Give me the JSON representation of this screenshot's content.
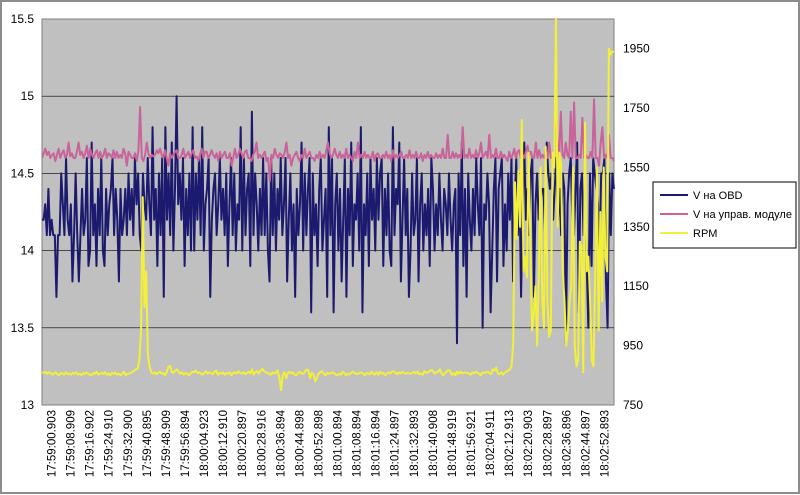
{
  "chart_data": {
    "type": "line",
    "x_tick_labels": [
      "17:59:00.903",
      "17:59:08.909",
      "17:59:16.902",
      "17:59:24.910",
      "17:59:32.900",
      "17:59:40.895",
      "17:59:48.909",
      "17:59:56.894",
      "18:00:04.923",
      "18:00:12.910",
      "18:00:20.897",
      "18:00:28.916",
      "18:00:36.894",
      "18:00:44.898",
      "18:00:52.898",
      "18:01:00.894",
      "18:01:08.894",
      "18:01:16.894",
      "18:01:24.897",
      "18:01:32.893",
      "18:01:40.908",
      "18:01:48.919",
      "18:01:56.921",
      "18:02:04.911",
      "18:02:12.913",
      "18:02:20.903",
      "18:02:28.897",
      "18:02:36.896",
      "18:02:44.897",
      "18:02:52.893"
    ],
    "y_left": {
      "ticks": [
        "13",
        "13.5",
        "14",
        "14.5",
        "15",
        "15.5"
      ],
      "range": [
        13,
        15.5
      ]
    },
    "y_right": {
      "ticks": [
        "750",
        "950",
        "1150",
        "1350",
        "1550",
        "1750",
        "1950"
      ],
      "range": [
        750,
        2050
      ]
    },
    "grid": true,
    "legend_position": "right",
    "series": [
      {
        "name": "V на OBD",
        "axis": "left",
        "color": "#1c1a6e",
        "values": [
          14.2,
          14.2,
          14.3,
          14.1,
          14.4,
          14.1,
          14.2,
          14.1,
          14.1,
          13.7,
          14.1,
          14.1,
          14.5,
          14.3,
          14.1,
          14.6,
          14.2,
          14.1,
          14.3,
          13.8,
          14.1,
          14.5,
          14.1,
          13.8,
          14.1,
          14.4,
          14.1,
          14.2,
          14.6,
          13.9,
          14.0,
          14.7,
          14.1,
          14.3,
          13.9,
          14.4,
          14.1,
          14.6,
          14.0,
          13.9,
          14.4,
          14.1,
          14.3,
          14.4,
          14.6,
          14.1,
          14.4,
          14.2,
          13.8,
          14.4,
          14.1,
          14.2,
          14.4,
          14.1,
          14.5,
          14.2,
          14.4,
          14.1,
          14.6,
          14.3,
          14.5,
          14.1,
          14.0,
          14.5,
          14.3,
          14.2,
          14.6,
          14.3,
          14.1,
          14.8,
          14.2,
          14.4,
          13.9,
          14.5,
          14.1,
          14.6,
          13.7,
          14.8,
          14.2,
          14.5,
          14.1,
          14.7,
          14.0,
          14.4,
          15.0,
          14.3,
          14.5,
          14.2,
          14.6,
          13.9,
          14.4,
          14.1,
          14.5,
          14.0,
          14.8,
          14.0,
          14.5,
          14.2,
          14.6,
          14.1,
          14.8,
          14.0,
          14.3,
          14.4,
          14.6,
          13.7,
          14.2,
          14.4,
          14.5,
          14.1,
          14.3,
          14.6,
          14.2,
          14.4,
          14.1,
          14.5,
          13.9,
          14.3,
          14.6,
          14.1,
          14.5,
          14.0,
          14.3,
          14.2,
          14.8,
          14.0,
          14.6,
          14.1,
          14.4,
          14.5,
          13.9,
          14.9,
          14.1,
          14.5,
          14.3,
          14.0,
          14.4,
          14.1,
          14.6,
          14.1,
          14.5,
          14.0,
          13.8,
          14.6,
          14.1,
          14.5,
          14.0,
          14.4,
          14.2,
          14.6,
          14.1,
          14.3,
          14.6,
          13.8,
          14.2,
          14.5,
          14.0,
          14.3,
          13.7,
          14.4,
          14.1,
          14.3,
          14.7,
          14.0,
          14.5,
          14.1,
          14.4,
          14.6,
          13.6,
          14.5,
          14.1,
          14.3,
          13.9,
          14.4,
          14.6,
          14.0,
          14.2,
          14.4,
          13.7,
          14.8,
          14.1,
          14.6,
          13.6,
          14.3,
          14.5,
          14.0,
          14.4,
          13.8,
          14.2,
          14.6,
          13.7,
          14.4,
          14.1,
          14.7,
          13.9,
          14.3,
          14.2,
          14.5,
          14.0,
          14.8,
          13.6,
          14.3,
          14.1,
          14.5,
          13.9,
          14.6,
          14.2,
          14.4,
          14.0,
          14.6,
          14.2,
          14.5,
          14.6,
          13.9,
          14.4,
          14.1,
          14.5,
          14.0,
          13.9,
          14.8,
          14.1,
          14.4,
          14.3,
          14.7,
          13.8,
          14.2,
          14.6,
          14.1,
          14.4,
          13.7,
          14.0,
          14.5,
          14.1,
          14.2,
          14.6,
          13.8,
          14.3,
          14.5,
          14.0,
          14.3,
          14.1,
          14.4,
          13.9,
          14.6,
          14.4,
          14.0,
          14.3,
          14.1,
          14.5,
          14.2,
          14.0,
          14.4,
          14.3,
          14.1,
          14.5,
          14.2,
          14.0,
          14.3,
          14.4,
          13.4,
          14.5,
          14.1,
          14.7,
          13.9,
          14.4,
          13.7,
          14.5,
          14.2,
          14.0,
          14.4,
          14.1,
          14.6,
          14.3,
          14.1,
          14.6,
          13.5,
          14.3,
          14.2,
          14.5,
          14.3,
          13.6,
          14.0,
          14.4,
          14.6,
          13.8,
          14.4,
          14.5,
          14.6,
          13.9,
          14.3,
          14.0,
          14.5,
          14.2,
          14.6,
          13.8,
          14.3,
          14.6,
          14.1,
          14.4,
          13.7,
          14.3,
          14.7,
          14.2,
          14.4,
          14.1,
          14.5,
          14.6,
          13.7,
          14.3,
          14.5,
          14.2,
          14.3,
          14.4,
          14.4,
          14.1,
          14.7,
          14.5,
          14.4,
          14.5,
          14.2,
          14.4,
          14.6,
          14.2,
          14.4,
          14.1,
          14.5,
          14.4,
          13.4,
          14.3,
          14.5,
          14.6,
          14.2,
          14.1,
          14.4,
          14.7,
          13.6,
          14.4,
          14.5,
          14.1,
          14.3,
          13.9,
          13.5,
          14.5,
          13.9,
          14.6,
          14.5,
          14.4,
          14.3,
          14.0,
          14.5,
          14.5,
          14.6,
          13.8,
          13.5,
          14.5,
          14.1,
          14.5,
          14.4
        ]
      },
      {
        "name": "V на управ. модуле",
        "axis": "left",
        "color": "#c8649a",
        "values": [
          14.6,
          14.63,
          14.66,
          14.62,
          14.64,
          14.6,
          14.62,
          14.63,
          14.58,
          14.62,
          14.66,
          14.6,
          14.63,
          14.65,
          14.6,
          14.62,
          14.7,
          14.61,
          14.63,
          14.6,
          14.6,
          14.64,
          14.7,
          14.62,
          14.64,
          14.6,
          14.63,
          14.68,
          14.6,
          14.66,
          14.62,
          14.6,
          14.63,
          14.65,
          14.6,
          14.64,
          14.6,
          14.62,
          14.66,
          14.6,
          14.63,
          14.62,
          14.6,
          14.65,
          14.6,
          14.64,
          14.6,
          14.62,
          14.6,
          14.66,
          14.63,
          14.55,
          14.64,
          14.62,
          14.6,
          14.6,
          14.63,
          14.58,
          14.65,
          14.93,
          14.6,
          14.58,
          14.62,
          14.7,
          14.63,
          14.6,
          14.62,
          14.61,
          14.62,
          14.65,
          14.63,
          14.66,
          14.62,
          14.6,
          14.65,
          14.6,
          14.55,
          14.63,
          14.6,
          14.62,
          14.64,
          14.65,
          14.6,
          14.6,
          14.62,
          14.66,
          14.6,
          14.62,
          14.64,
          14.6,
          14.63,
          14.65,
          14.6,
          14.61,
          14.58,
          14.62,
          14.66,
          14.6,
          14.64,
          14.64,
          14.6,
          14.62,
          14.65,
          14.62,
          14.6,
          14.63,
          14.58,
          14.64,
          14.6,
          14.62,
          14.64,
          14.6,
          14.6,
          14.63,
          14.55,
          14.6,
          14.66,
          14.6,
          14.62,
          14.66,
          14.63,
          14.6,
          14.64,
          14.65,
          14.6,
          14.6,
          14.58,
          14.62,
          14.64,
          14.7,
          14.6,
          14.62,
          14.6,
          14.62,
          14.64,
          14.58,
          14.6,
          14.45,
          14.62,
          14.6,
          14.66,
          14.62,
          14.6,
          14.63,
          14.62,
          14.6,
          14.64,
          14.7,
          14.6,
          14.62,
          14.55,
          14.6,
          14.62,
          14.64,
          14.6,
          14.58,
          14.62,
          14.6,
          14.66,
          14.6,
          14.62,
          14.64,
          14.6,
          14.6,
          14.58,
          14.62,
          14.6,
          14.64,
          14.6,
          14.62,
          14.6,
          14.65,
          14.7,
          14.63,
          14.6,
          14.62,
          14.66,
          14.62,
          14.6,
          14.64,
          14.6,
          14.62,
          14.6,
          14.66,
          14.6,
          14.62,
          14.6,
          14.58,
          14.64,
          14.6,
          14.7,
          14.6,
          14.62,
          14.6,
          14.64,
          14.6,
          14.62,
          14.6,
          14.6,
          14.64,
          14.58,
          14.62,
          14.63,
          14.6,
          14.6,
          14.62,
          14.6,
          14.64,
          14.6,
          14.62,
          14.58,
          14.65,
          14.6,
          14.62,
          14.6,
          14.62,
          14.64,
          14.6,
          14.6,
          14.62,
          14.6,
          14.65,
          14.6,
          14.62,
          14.6,
          14.64,
          14.6,
          14.6,
          14.63,
          14.58,
          14.62,
          14.6,
          14.64,
          14.6,
          14.62,
          14.6,
          14.6,
          14.63,
          14.6,
          14.62,
          14.6,
          14.66,
          14.6,
          14.6,
          14.75,
          14.6,
          14.6,
          14.64,
          14.6,
          14.63,
          14.6,
          14.62,
          14.6,
          14.8,
          14.6,
          14.62,
          14.6,
          14.66,
          14.6,
          14.62,
          14.6,
          14.65,
          14.6,
          14.63,
          14.7,
          14.6,
          14.62,
          14.64,
          14.6,
          14.75,
          14.6,
          14.62,
          14.6,
          14.66,
          14.6,
          14.6,
          14.64,
          14.6,
          14.62,
          14.6,
          14.58,
          14.64,
          14.6,
          14.62,
          14.66,
          14.6,
          14.64,
          14.65,
          14.6,
          14.62,
          14.6,
          14.64,
          14.68,
          14.62,
          14.64,
          14.6,
          14.6,
          14.7,
          14.6,
          14.65,
          14.6,
          14.62,
          14.6,
          14.64,
          14.6,
          14.7,
          14.6,
          14.62,
          14.6,
          14.99,
          14.7,
          14.6,
          14.9,
          14.62,
          14.6,
          14.7,
          14.62,
          14.6,
          14.9,
          14.6,
          14.96,
          14.6,
          14.6,
          14.62,
          14.6,
          14.86,
          14.6,
          14.62,
          14.6,
          14.6,
          14.64,
          14.6,
          14.98,
          14.6,
          14.6,
          14.55,
          14.7,
          14.8,
          14.6,
          14.62,
          14.6,
          14.75,
          14.6,
          14.6,
          14.58
        ]
      },
      {
        "name": "RPM",
        "axis": "right",
        "color": "#f2f03a",
        "values": [
          860,
          858,
          862,
          855,
          860,
          858,
          852,
          856,
          860,
          854,
          850,
          858,
          856,
          852,
          860,
          854,
          856,
          852,
          858,
          855,
          860,
          852,
          856,
          850,
          858,
          854,
          860,
          856,
          852,
          850,
          858,
          855,
          862,
          852,
          856,
          858,
          854,
          860,
          852,
          856,
          850,
          858,
          855,
          860,
          852,
          856,
          850,
          856,
          862,
          850,
          855,
          856,
          858,
          862,
          866,
          870,
          872,
          900,
          1000,
          1450,
          1080,
          1200,
          920,
          880,
          860,
          856,
          860,
          854,
          858,
          862,
          856,
          858,
          850,
          860,
          878,
          882,
          862,
          858,
          866,
          870,
          862,
          856,
          860,
          852,
          858,
          856,
          850,
          856,
          862,
          860,
          866,
          858,
          860,
          856,
          852,
          858,
          864,
          856,
          860,
          858,
          854,
          862,
          866,
          852,
          858,
          856,
          860,
          852,
          858,
          856,
          860,
          850,
          858,
          860,
          856,
          864,
          858,
          856,
          860,
          854,
          858,
          862,
          856,
          870,
          852,
          860,
          864,
          856,
          866,
          872,
          864,
          860,
          858,
          855,
          852,
          860,
          856,
          858,
          866,
          842,
          800,
          852,
          860,
          840,
          858,
          862,
          856,
          860,
          852,
          850,
          858,
          862,
          856,
          855,
          862,
          870,
          866,
          840,
          858,
          852,
          830,
          840,
          856,
          860,
          864,
          856,
          850,
          858,
          856,
          856,
          860,
          858,
          852,
          850,
          856,
          852,
          862,
          858,
          850,
          856,
          852,
          858,
          862,
          858,
          855,
          855,
          858,
          860,
          856,
          850,
          858,
          856,
          854,
          862,
          856,
          852,
          860,
          852,
          862,
          856,
          858,
          850,
          856,
          860,
          856,
          862,
          864,
          858,
          854,
          860,
          856,
          862,
          858,
          856,
          858,
          856,
          856,
          858,
          862,
          856,
          862,
          854,
          856,
          852,
          864,
          858,
          860,
          864,
          868,
          864,
          856,
          860,
          862,
          870,
          856,
          850,
          858,
          862,
          868,
          864,
          852,
          858,
          850,
          862,
          855,
          862,
          856,
          858,
          860,
          858,
          856,
          852,
          860,
          856,
          862,
          858,
          856,
          850,
          860,
          858,
          860,
          862,
          858,
          854,
          870,
          866,
          876,
          856,
          854,
          860,
          852,
          858,
          862,
          866,
          870,
          880,
          960,
          1500,
          1310,
          1540,
          1350,
          1710,
          1200,
          1250,
          1180,
          1600,
          1300,
          1000,
          1050,
          1150,
          950,
          1200,
          1550,
          1100,
          1010,
          1620,
          1100,
          980,
          1000,
          1600,
          1550,
          2050,
          1350,
          1600,
          1560,
          1200,
          1100,
          950,
          1000,
          1100,
          1150,
          1550,
          950,
          880,
          900,
          1300,
          1280,
          860,
          1700,
          1200,
          1250,
          1100,
          900,
          880,
          1200,
          1550,
          1000,
          1400,
          1100,
          1550,
          1250,
          1200,
          1950,
          1930,
          1940,
          1940
        ]
      }
    ]
  }
}
